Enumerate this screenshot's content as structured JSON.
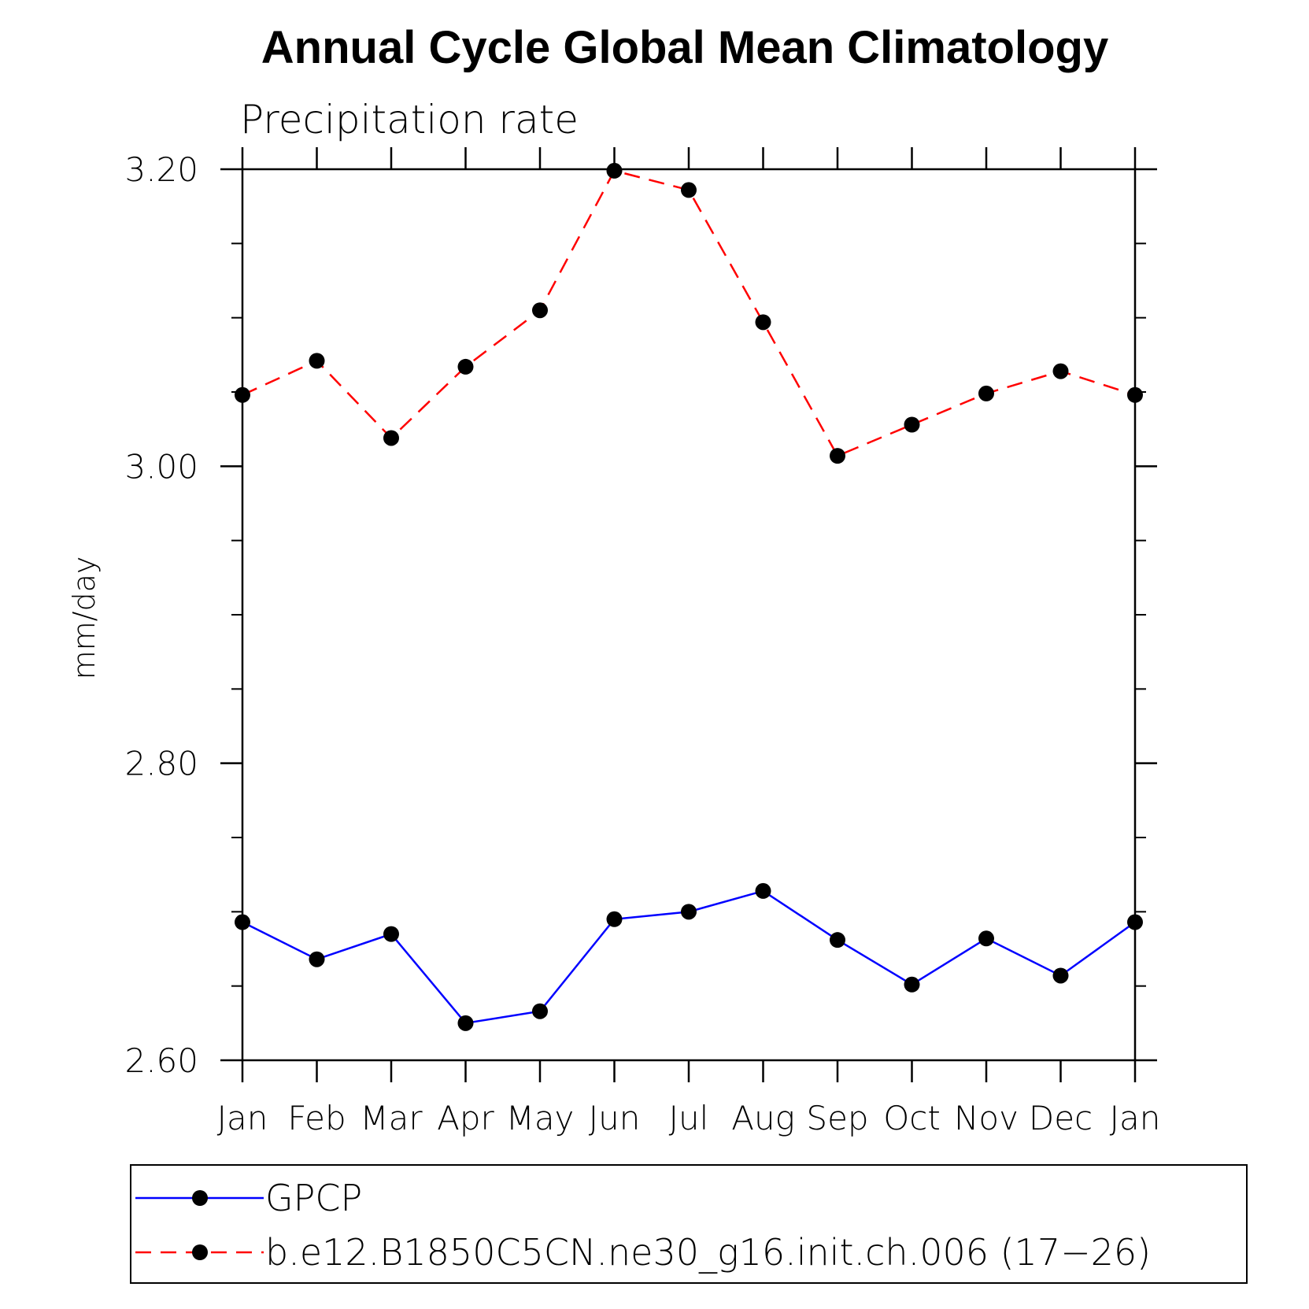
{
  "chart_data": {
    "type": "line",
    "title": "Annual Cycle Global Mean Climatology",
    "subtitle": "Precipitation rate",
    "ylabel": "mm/day",
    "xlabel": "",
    "categories": [
      "Jan",
      "Feb",
      "Mar",
      "Apr",
      "May",
      "Jun",
      "Jul",
      "Aug",
      "Sep",
      "Oct",
      "Nov",
      "Dec",
      "Jan"
    ],
    "ylim": [
      2.6,
      3.2
    ],
    "yticks_major": [
      "2.60",
      "2.80",
      "3.00",
      "3.20"
    ],
    "yticks_major_values": [
      2.6,
      2.8,
      3.0,
      3.2
    ],
    "yticks_minor_values": [
      2.65,
      2.7,
      2.75,
      2.85,
      2.9,
      2.95,
      3.05,
      3.1,
      3.15
    ],
    "grid": false,
    "legend_placement": "bottom",
    "series": [
      {
        "name": "GPCP",
        "color": "#0000ff",
        "dash": "solid",
        "values": [
          2.693,
          2.668,
          2.685,
          2.625,
          2.633,
          2.695,
          2.7,
          2.714,
          2.681,
          2.651,
          2.682,
          2.657,
          2.693
        ]
      },
      {
        "name": "b.e12.B1850C5CN.ne30_g16.init.ch.006 (17−26)",
        "color": "#ff0000",
        "dash": "dashed",
        "values": [
          3.048,
          3.071,
          3.019,
          3.067,
          3.105,
          3.199,
          3.186,
          3.097,
          3.007,
          3.028,
          3.049,
          3.064,
          3.048
        ]
      }
    ]
  }
}
